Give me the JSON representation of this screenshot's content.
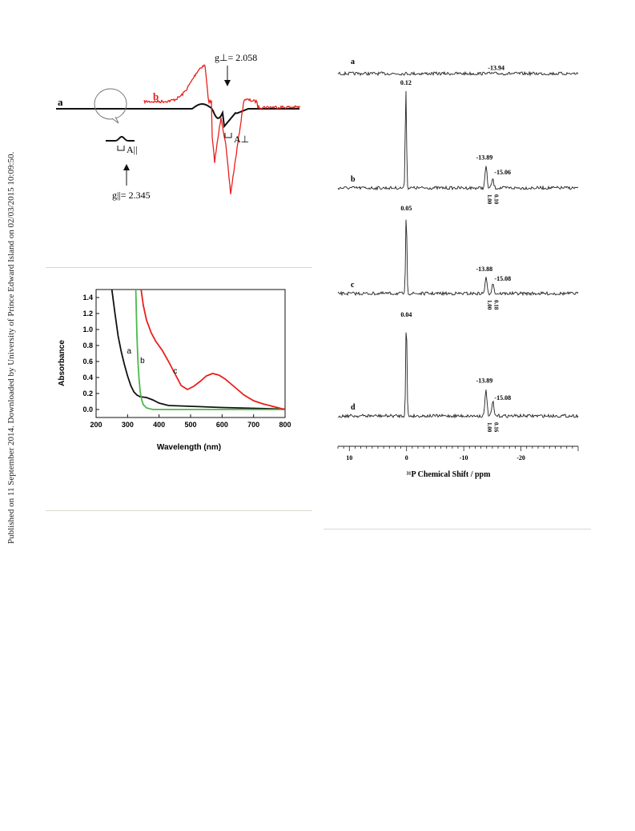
{
  "side_note": "Published on 11 September 2014. Downloaded by University of Prince Edward Island on 02/03/2015 10:09:50.",
  "epr": {
    "label_a": "a",
    "label_b": "b",
    "g_perp": "g⊥= 2.058",
    "g_par": "g||= 2.345",
    "a_perp": "A⊥",
    "a_par": "A||",
    "colors": {
      "a": "#111111",
      "b": "#e8201c"
    }
  },
  "uv": {
    "chart_data": {
      "type": "line",
      "xlabel": "Wavelength (nm)",
      "ylabel": "Absorbance",
      "xlim": [
        200,
        800
      ],
      "ylim": [
        -0.1,
        1.5
      ],
      "x_ticks": [
        200,
        300,
        400,
        500,
        600,
        700,
        800
      ],
      "y_ticks": [
        0.0,
        0.2,
        0.4,
        0.6,
        0.8,
        1.0,
        1.2,
        1.4
      ],
      "series": [
        {
          "name": "a",
          "color": "#111111",
          "points": [
            [
              250,
              1.5
            ],
            [
              260,
              1.2
            ],
            [
              270,
              0.92
            ],
            [
              280,
              0.72
            ],
            [
              290,
              0.56
            ],
            [
              300,
              0.42
            ],
            [
              310,
              0.3
            ],
            [
              320,
              0.22
            ],
            [
              330,
              0.18
            ],
            [
              340,
              0.16
            ],
            [
              360,
              0.15
            ],
            [
              380,
              0.12
            ],
            [
              400,
              0.08
            ],
            [
              430,
              0.05
            ],
            [
              500,
              0.04
            ],
            [
              600,
              0.025
            ],
            [
              700,
              0.015
            ],
            [
              800,
              0.005
            ]
          ]
        },
        {
          "name": "b",
          "color": "#4db84a",
          "points": [
            [
              326,
              1.5
            ],
            [
              328,
              1.2
            ],
            [
              330,
              0.9
            ],
            [
              333,
              0.6
            ],
            [
              336,
              0.4
            ],
            [
              340,
              0.22
            ],
            [
              345,
              0.12
            ],
            [
              350,
              0.06
            ],
            [
              360,
              0.02
            ],
            [
              380,
              0.0
            ],
            [
              800,
              0.0
            ]
          ]
        },
        {
          "name": "c",
          "color": "#e8201c",
          "points": [
            [
              343,
              1.5
            ],
            [
              350,
              1.3
            ],
            [
              360,
              1.12
            ],
            [
              375,
              0.96
            ],
            [
              390,
              0.85
            ],
            [
              410,
              0.74
            ],
            [
              430,
              0.6
            ],
            [
              450,
              0.45
            ],
            [
              470,
              0.3
            ],
            [
              490,
              0.25
            ],
            [
              510,
              0.29
            ],
            [
              530,
              0.35
            ],
            [
              550,
              0.42
            ],
            [
              570,
              0.45
            ],
            [
              590,
              0.43
            ],
            [
              610,
              0.38
            ],
            [
              640,
              0.28
            ],
            [
              670,
              0.18
            ],
            [
              700,
              0.11
            ],
            [
              730,
              0.07
            ],
            [
              760,
              0.04
            ],
            [
              800,
              0.0
            ]
          ]
        }
      ],
      "curve_labels": [
        {
          "text": "a",
          "x": 298,
          "y": 0.7
        },
        {
          "text": "b",
          "x": 340,
          "y": 0.58
        },
        {
          "text": "c",
          "x": 445,
          "y": 0.45
        }
      ]
    }
  },
  "nmr": {
    "chart_data": {
      "type": "line",
      "xlabel": "³¹P Chemical Shift / ppm",
      "xlim": [
        12,
        -30
      ],
      "x_ticks": [
        "10",
        "0",
        "-10",
        "-20"
      ],
      "spectra": [
        {
          "label": "a",
          "peaks": [
            {
              "ppm": -13.94,
              "label": "-13.94",
              "height": 0.08
            }
          ],
          "integrals": []
        },
        {
          "label": "b",
          "peaks": [
            {
              "ppm": 0.12,
              "label": "0.12",
              "height": 1.0
            },
            {
              "ppm": -13.89,
              "label": "-13.89",
              "height": 0.22
            },
            {
              "ppm": -15.06,
              "label": "-15.06",
              "height": 0.09
            }
          ],
          "integrals": [
            "1.00",
            "0.10"
          ]
        },
        {
          "label": "c",
          "peaks": [
            {
              "ppm": 0.05,
              "label": "0.05",
              "height": 1.0
            },
            {
              "ppm": -13.88,
              "label": "-13.88",
              "height": 0.2
            },
            {
              "ppm": -15.08,
              "label": "-15.08",
              "height": 0.14
            }
          ],
          "integrals": [
            "1.00",
            "0.18"
          ]
        },
        {
          "label": "d",
          "peaks": [
            {
              "ppm": 0.04,
              "label": "0.04",
              "height": 1.0
            },
            {
              "ppm": -13.89,
              "label": "-13.89",
              "height": 0.28
            },
            {
              "ppm": -15.08,
              "label": "-15.08",
              "height": 0.15
            }
          ],
          "integrals": [
            "1.00",
            "0.16"
          ]
        }
      ]
    }
  }
}
